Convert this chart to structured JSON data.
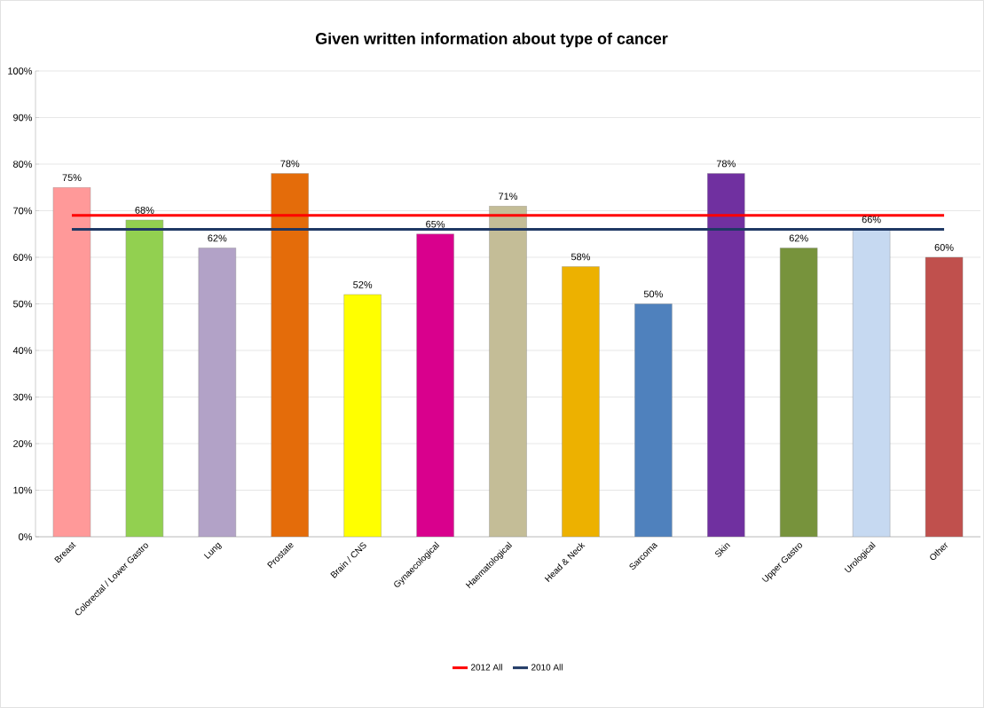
{
  "chart_data": {
    "type": "bar",
    "title": "Given written information about type of cancer",
    "categories": [
      "Breast",
      "Colorectal / Lower Gastro",
      "Lung",
      "Prostate",
      "Brain / CNS",
      "Gynaecological",
      "Haematological",
      "Head & Neck",
      "Sarcoma",
      "Skin",
      "Upper Gastro",
      "Urological",
      "Other"
    ],
    "series": [
      {
        "values": [
          75,
          68,
          62,
          78,
          52,
          65,
          71,
          58,
          50,
          78,
          62,
          66,
          60
        ],
        "value_labels": [
          "75%",
          "68%",
          "62%",
          "78%",
          "52%",
          "65%",
          "71%",
          "58%",
          "50%",
          "78%",
          "62%",
          "66%",
          "60%"
        ],
        "colors": [
          "#ff9999",
          "#92d050",
          "#b2a2c7",
          "#e46c0a",
          "#ffff00",
          "#d9008d",
          "#c4bd97",
          "#edb100",
          "#4f81bd",
          "#7030a0",
          "#77933c",
          "#c6d9f1",
          "#c0504d"
        ]
      },
      {
        "type": "line",
        "name": "2012 All",
        "color": "#ff0000",
        "values": [
          69,
          69,
          69,
          69,
          69,
          69,
          69,
          69,
          69,
          69,
          69,
          69,
          69
        ]
      },
      {
        "type": "line",
        "name": "2010 All",
        "color": "#1f3864",
        "values": [
          66,
          66,
          66,
          66,
          66,
          66,
          66,
          66,
          66,
          66,
          66,
          66,
          66
        ]
      }
    ],
    "ylim": [
      0,
      100
    ],
    "yticks": [
      {
        "value": 0,
        "label": "0%"
      },
      {
        "value": 10,
        "label": "10%"
      },
      {
        "value": 20,
        "label": "20%"
      },
      {
        "value": 30,
        "label": "30%"
      },
      {
        "value": 40,
        "label": "40%"
      },
      {
        "value": 50,
        "label": "50%"
      },
      {
        "value": 60,
        "label": "60%"
      },
      {
        "value": 70,
        "label": "70%"
      },
      {
        "value": 80,
        "label": "80%"
      },
      {
        "value": 90,
        "label": "90%"
      },
      {
        "value": 100,
        "label": "100%"
      }
    ],
    "grid": "y",
    "legend": "bottom"
  }
}
